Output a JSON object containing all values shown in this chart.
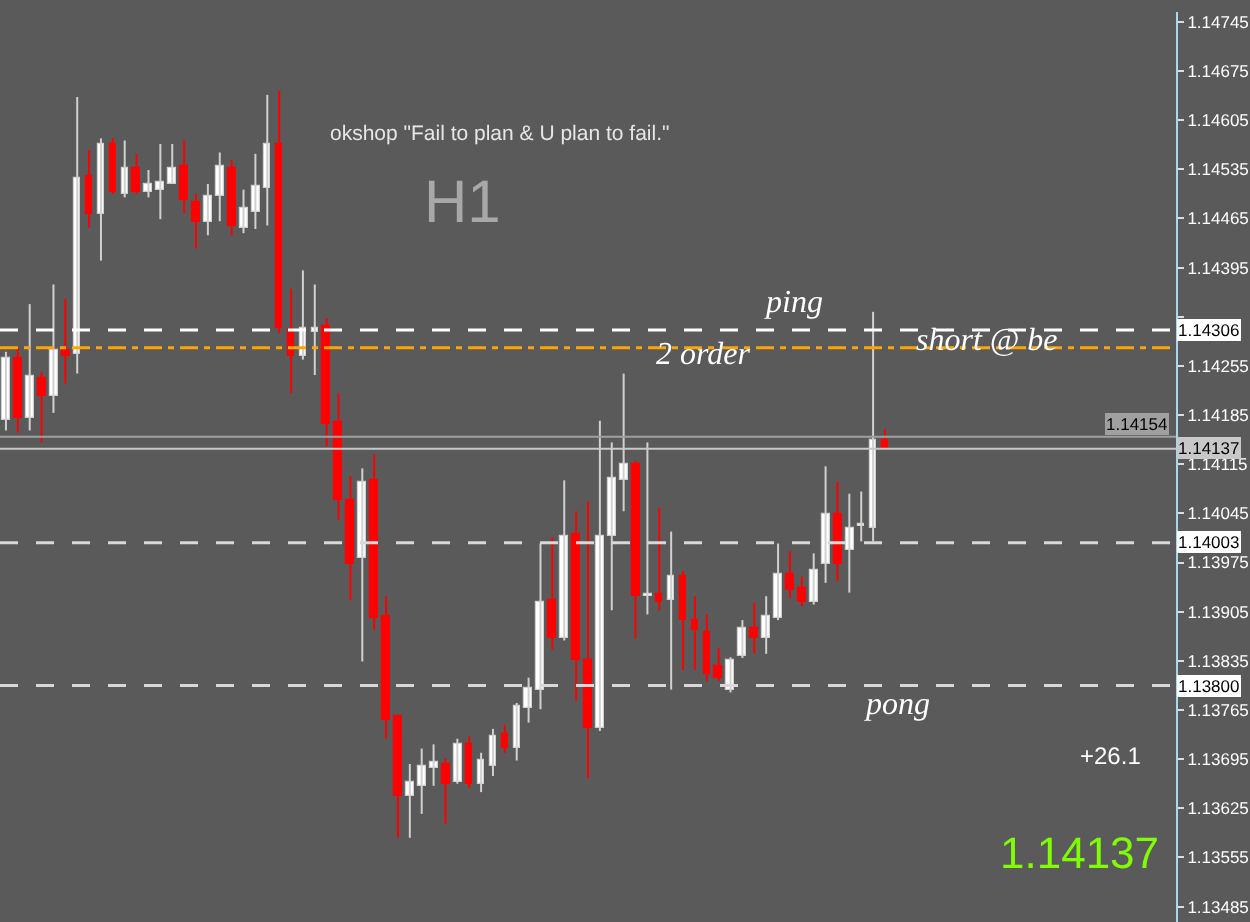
{
  "chart_data": {
    "type": "candlestick",
    "categories": [
      null,
      null,
      null,
      null,
      null,
      null,
      null,
      null,
      null,
      null,
      null,
      null,
      null,
      null,
      null,
      null,
      null,
      null,
      null,
      null,
      null,
      null,
      null,
      null,
      null,
      null,
      null,
      null,
      null,
      null,
      null,
      null,
      null,
      null,
      null,
      null,
      null,
      null,
      null,
      null,
      null,
      null,
      null,
      null,
      null,
      null,
      null,
      null,
      null,
      null,
      null,
      null,
      null,
      null,
      null,
      null,
      null,
      null,
      null,
      null,
      null,
      null,
      null,
      null,
      null,
      null,
      null,
      null,
      null,
      null,
      null,
      null,
      null,
      null,
      null,
      null,
      null,
      null,
      null,
      null,
      null,
      null,
      null,
      null,
      null,
      null,
      null,
      null,
      null,
      null,
      null,
      null,
      null,
      null,
      null,
      null,
      null,
      null,
      null
    ],
    "ohlc": [
      [
        1.14177,
        1.14275,
        1.14163,
        1.14267
      ],
      [
        1.14267,
        1.14281,
        1.1416,
        1.14182
      ],
      [
        1.1418,
        1.14343,
        1.14163,
        1.14242
      ],
      [
        1.14239,
        1.14247,
        1.14146,
        1.14211
      ],
      [
        1.14213,
        1.14371,
        1.14188,
        1.14278
      ],
      [
        1.14278,
        1.14351,
        1.1423,
        1.1427
      ],
      [
        1.14272,
        1.14638,
        1.14244,
        1.14523
      ],
      [
        1.14526,
        1.14562,
        1.14452,
        1.14472
      ],
      [
        1.14472,
        1.14579,
        1.14405,
        1.14571
      ],
      [
        1.14571,
        1.14579,
        1.145,
        1.14503
      ],
      [
        1.145,
        1.14576,
        1.14495,
        1.14537
      ],
      [
        1.14537,
        1.14557,
        1.145,
        1.14503
      ],
      [
        1.14503,
        1.14534,
        1.14495,
        1.14514
      ],
      [
        1.14506,
        1.14571,
        1.14464,
        1.14517
      ],
      [
        1.14514,
        1.14571,
        1.14514,
        1.14537
      ],
      [
        1.1454,
        1.14576,
        1.14472,
        1.14492
      ],
      [
        1.14489,
        1.145,
        1.14422,
        1.14461
      ],
      [
        1.14461,
        1.14514,
        1.14441,
        1.14497
      ],
      [
        1.14497,
        1.14559,
        1.14461,
        1.1454
      ],
      [
        1.14537,
        1.14548,
        1.14441,
        1.14455
      ],
      [
        1.14452,
        1.14506,
        1.14444,
        1.14481
      ],
      [
        1.14475,
        1.14557,
        1.1445,
        1.14512
      ],
      [
        1.14509,
        1.14641,
        1.14455,
        1.14571
      ],
      [
        1.14571,
        1.14647,
        1.14302,
        1.14309
      ],
      [
        1.14306,
        1.14365,
        1.14216,
        1.1427
      ],
      [
        1.1427,
        1.14391,
        1.14264,
        1.14309
      ],
      [
        1.14303,
        1.14371,
        1.14242,
        1.14309
      ],
      [
        1.14312,
        1.14323,
        1.1414,
        1.14171
      ],
      [
        1.14174,
        1.14216,
        1.14036,
        1.14064
      ],
      [
        1.14064,
        1.14098,
        1.13921,
        1.13974
      ],
      [
        1.1398,
        1.14109,
        1.13834,
        1.1409
      ],
      [
        1.14092,
        1.14129,
        1.13879,
        1.13896
      ],
      [
        1.13898,
        1.13927,
        1.13724,
        1.13752
      ],
      [
        1.13755,
        1.13758,
        1.13583,
        1.13642
      ],
      [
        1.13642,
        1.13688,
        1.13583,
        1.13662
      ],
      [
        1.13657,
        1.1371,
        1.13617,
        1.13685
      ],
      [
        1.13682,
        1.13716,
        1.13657,
        1.1369
      ],
      [
        1.13687,
        1.13696,
        1.13603,
        1.13659
      ],
      [
        1.13662,
        1.13724,
        1.1366,
        1.13716
      ],
      [
        1.13716,
        1.13727,
        1.13654,
        1.13659
      ],
      [
        1.13659,
        1.13704,
        1.13648,
        1.13693
      ],
      [
        1.13685,
        1.13738,
        1.13671,
        1.13727
      ],
      [
        1.1373,
        1.13744,
        1.13704,
        1.1371
      ],
      [
        1.1371,
        1.13775,
        1.13693,
        1.13772
      ],
      [
        1.13769,
        1.13811,
        1.13747,
        1.13797
      ],
      [
        1.13794,
        1.14002,
        1.13766,
        1.13918
      ],
      [
        1.13921,
        1.14011,
        1.13851,
        1.13867
      ],
      [
        1.13867,
        1.14092,
        1.13864,
        1.14014
      ],
      [
        1.14017,
        1.14048,
        1.13778,
        1.13837
      ],
      [
        1.13837,
        1.14062,
        1.13668,
        1.13738
      ],
      [
        1.13738,
        1.14177,
        1.13735,
        1.14014
      ],
      [
        1.14014,
        1.14146,
        1.13907,
        1.14095
      ],
      [
        1.14092,
        1.14244,
        1.14048,
        1.14115
      ],
      [
        1.14115,
        1.1412,
        1.13867,
        1.13927
      ],
      [
        1.13927,
        1.14146,
        1.13901,
        1.1393
      ],
      [
        1.1393,
        1.14053,
        1.13907,
        1.13918
      ],
      [
        1.13921,
        1.14019,
        1.13794,
        1.13955
      ],
      [
        1.13955,
        1.13963,
        1.13822,
        1.13893
      ],
      [
        1.13893,
        1.13927,
        1.13822,
        1.13879
      ],
      [
        1.13876,
        1.13901,
        1.13806,
        1.13817
      ],
      [
        1.13828,
        1.13853,
        1.13806,
        1.13811
      ],
      [
        1.13794,
        1.1384,
        1.1379,
        1.13837
      ],
      [
        1.13842,
        1.13893,
        1.13839,
        1.13882
      ],
      [
        1.13882,
        1.13918,
        1.13845,
        1.13867
      ],
      [
        1.13867,
        1.13927,
        1.13845,
        1.13898
      ],
      [
        1.13896,
        1.14002,
        1.13893,
        1.1396
      ],
      [
        1.1396,
        1.13991,
        1.13924,
        1.13935
      ],
      [
        1.13938,
        1.13955,
        1.13913,
        1.13918
      ],
      [
        1.13918,
        1.13988,
        1.13915,
        1.13963
      ],
      [
        1.13972,
        1.14112,
        1.13946,
        1.14045
      ],
      [
        1.14045,
        1.1409,
        1.13949,
        1.13972
      ],
      [
        1.13994,
        1.14073,
        1.13932,
        1.14025
      ],
      [
        1.14028,
        1.14076,
        1.14005,
        1.14031
      ],
      [
        1.14025,
        1.14332,
        1.14005,
        1.1415
      ],
      [
        1.1415,
        1.14165,
        1.14137,
        1.14137
      ],
      null,
      null,
      null,
      null,
      null,
      null,
      null,
      null,
      null,
      null,
      null,
      null,
      null,
      null,
      null,
      null,
      null,
      null,
      null,
      null,
      null,
      null,
      null,
      null
    ],
    "ylim": [
      1.13463,
      1.14759
    ],
    "yticks": [
      1.14745,
      1.14675,
      1.14605,
      1.14535,
      1.14465,
      1.14395,
      {
        "value": 1.14325,
        "label": null
      },
      1.14255,
      1.14185,
      1.14115,
      1.14045,
      1.13975,
      1.13905,
      1.13835,
      1.13765,
      1.13695,
      1.13625,
      1.13555,
      1.13485
    ],
    "ref_lines": [
      {
        "axis": "y",
        "value": 1.14306,
        "label": "1.14306",
        "color": "#ffffff",
        "line_style": "dashed"
      },
      {
        "axis": "y",
        "value": 1.14281,
        "color": "#ffa500",
        "line_style": "dashed"
      },
      {
        "axis": "y",
        "value": 1.14154,
        "label": "1.14154",
        "color": "#a0a0a0",
        "line_style": "solid"
      },
      {
        "axis": "y",
        "value": 1.14137,
        "label": "1.14137",
        "color": "#c8c8c8",
        "line_style": "solid"
      },
      {
        "axis": "y",
        "value": 1.14003,
        "label": "1.14003",
        "color": "#d8d8d8",
        "line_style": "dashed"
      },
      {
        "axis": "y",
        "value": 1.138,
        "label": "1.13800",
        "color": "#d8d8d8",
        "line_style": "dashed"
      }
    ],
    "annotations": [
      "okshop \"Fail to plan & U plan to fail.\"",
      "H1",
      "ping",
      {
        "text": "2 order",
        "y": 1.1427
      },
      {
        "text": "short @ be",
        "y": 1.1429
      },
      "pong",
      "+26.1",
      "1.14137"
    ],
    "tick_labels": "y"
  }
}
